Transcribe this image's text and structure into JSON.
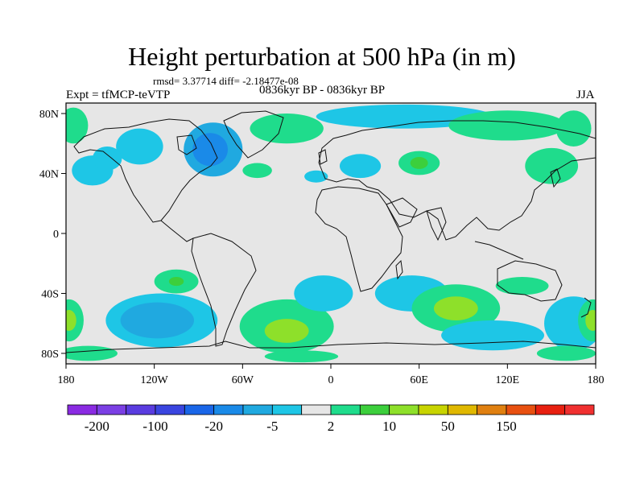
{
  "header": {
    "title": "Height perturbation at 500 hPa (in m)",
    "stats": "rmsd= 3.37714 diff= -2.18477e-08",
    "expt": "Expt = tfMCP-teVTP",
    "period": "0836kyr BP - 0836kyr BP",
    "season": "JJA"
  },
  "map": {
    "lat_ticks": [
      {
        "lat": 80,
        "label": "80N"
      },
      {
        "lat": 40,
        "label": "40N"
      },
      {
        "lat": 0,
        "label": "0"
      },
      {
        "lat": -40,
        "label": "40S"
      },
      {
        "lat": -80,
        "label": "80S"
      }
    ],
    "lon_ticks": [
      {
        "lon": -180,
        "label": "180"
      },
      {
        "lon": -120,
        "label": "120W"
      },
      {
        "lon": -60,
        "label": "60W"
      },
      {
        "lon": 0,
        "label": "0"
      },
      {
        "lon": 60,
        "label": "60E"
      },
      {
        "lon": 120,
        "label": "120E"
      },
      {
        "lon": 180,
        "label": "180"
      }
    ],
    "lat_range": [
      -87,
      87
    ],
    "lon_range": [
      -180,
      180
    ],
    "background_color": "#e6e6e6",
    "anomalies": [
      {
        "lon": -162,
        "lat": 42,
        "rx": 14,
        "ry": 10,
        "level": 7
      },
      {
        "lon": -130,
        "lat": 58,
        "rx": 16,
        "ry": 12,
        "level": 7
      },
      {
        "lon": -80,
        "lat": 56,
        "rx": 20,
        "ry": 18,
        "level": 6
      },
      {
        "lon": -82,
        "lat": 56,
        "rx": 12,
        "ry": 11,
        "level": 5
      },
      {
        "lon": -152,
        "lat": 50,
        "rx": 10,
        "ry": 8,
        "level": 7
      },
      {
        "lon": -30,
        "lat": 70,
        "rx": 25,
        "ry": 10,
        "level": 9
      },
      {
        "lon": -50,
        "lat": 42,
        "rx": 10,
        "ry": 5,
        "level": 9
      },
      {
        "lon": -10,
        "lat": 38,
        "rx": 8,
        "ry": 4,
        "level": 7
      },
      {
        "lon": 20,
        "lat": 45,
        "rx": 14,
        "ry": 8,
        "level": 7
      },
      {
        "lon": 60,
        "lat": 47,
        "rx": 14,
        "ry": 8,
        "level": 9
      },
      {
        "lon": 60,
        "lat": 47,
        "rx": 6,
        "ry": 4,
        "level": 10
      },
      {
        "lon": 50,
        "lat": 78,
        "rx": 60,
        "ry": 8,
        "level": 7
      },
      {
        "lon": 120,
        "lat": 72,
        "rx": 40,
        "ry": 10,
        "level": 9
      },
      {
        "lon": 150,
        "lat": 45,
        "rx": 18,
        "ry": 12,
        "level": 9
      },
      {
        "lon": 165,
        "lat": 70,
        "rx": 12,
        "ry": 12,
        "level": 9
      },
      {
        "lon": -175,
        "lat": 72,
        "rx": 10,
        "ry": 12,
        "level": 9
      },
      {
        "lon": -105,
        "lat": -32,
        "rx": 15,
        "ry": 8,
        "level": 9
      },
      {
        "lon": -105,
        "lat": -32,
        "rx": 5,
        "ry": 3,
        "level": 10
      },
      {
        "lon": -115,
        "lat": -58,
        "rx": 38,
        "ry": 18,
        "level": 7
      },
      {
        "lon": -118,
        "lat": -58,
        "rx": 25,
        "ry": 12,
        "level": 6
      },
      {
        "lon": -178,
        "lat": -58,
        "rx": 10,
        "ry": 14,
        "level": 9
      },
      {
        "lon": -178,
        "lat": -58,
        "rx": 5,
        "ry": 7,
        "level": 11
      },
      {
        "lon": -30,
        "lat": -62,
        "rx": 32,
        "ry": 18,
        "level": 9
      },
      {
        "lon": -30,
        "lat": -65,
        "rx": 15,
        "ry": 8,
        "level": 11
      },
      {
        "lon": -5,
        "lat": -40,
        "rx": 20,
        "ry": 12,
        "level": 7
      },
      {
        "lon": 55,
        "lat": -40,
        "rx": 25,
        "ry": 12,
        "level": 7
      },
      {
        "lon": 85,
        "lat": -50,
        "rx": 30,
        "ry": 16,
        "level": 9
      },
      {
        "lon": 85,
        "lat": -50,
        "rx": 15,
        "ry": 8,
        "level": 11
      },
      {
        "lon": 110,
        "lat": -68,
        "rx": 35,
        "ry": 10,
        "level": 7
      },
      {
        "lon": 130,
        "lat": -35,
        "rx": 18,
        "ry": 6,
        "level": 9
      },
      {
        "lon": 165,
        "lat": -60,
        "rx": 20,
        "ry": 18,
        "level": 7
      },
      {
        "lon": 178,
        "lat": -58,
        "rx": 10,
        "ry": 14,
        "level": 9
      },
      {
        "lon": 178,
        "lat": -58,
        "rx": 5,
        "ry": 7,
        "level": 11
      },
      {
        "lon": -165,
        "lat": -80,
        "rx": 20,
        "ry": 5,
        "level": 9
      },
      {
        "lon": 160,
        "lat": -80,
        "rx": 20,
        "ry": 5,
        "level": 9
      },
      {
        "lon": -20,
        "lat": -82,
        "rx": 25,
        "ry": 4,
        "level": 9
      }
    ]
  },
  "colorbar": {
    "colors": [
      "#8a2be2",
      "#7b3fe4",
      "#5a3ce0",
      "#3a45e0",
      "#1a66e8",
      "#1a8ae8",
      "#20a9e0",
      "#1ec6e6",
      "#e6e6e6",
      "#1fdc8c",
      "#3ccf3c",
      "#8ee02a",
      "#c8d400",
      "#e0b800",
      "#e08010",
      "#e85010",
      "#e82010",
      "#f03030"
    ],
    "labels": [
      {
        "after_box": 1,
        "text": "-200"
      },
      {
        "after_box": 3,
        "text": "-100"
      },
      {
        "after_box": 5,
        "text": "-20"
      },
      {
        "after_box": 7,
        "text": "-5"
      },
      {
        "after_box": 9,
        "text": "2"
      },
      {
        "after_box": 11,
        "text": "10"
      },
      {
        "after_box": 13,
        "text": "50"
      },
      {
        "after_box": 15,
        "text": "150"
      }
    ]
  }
}
